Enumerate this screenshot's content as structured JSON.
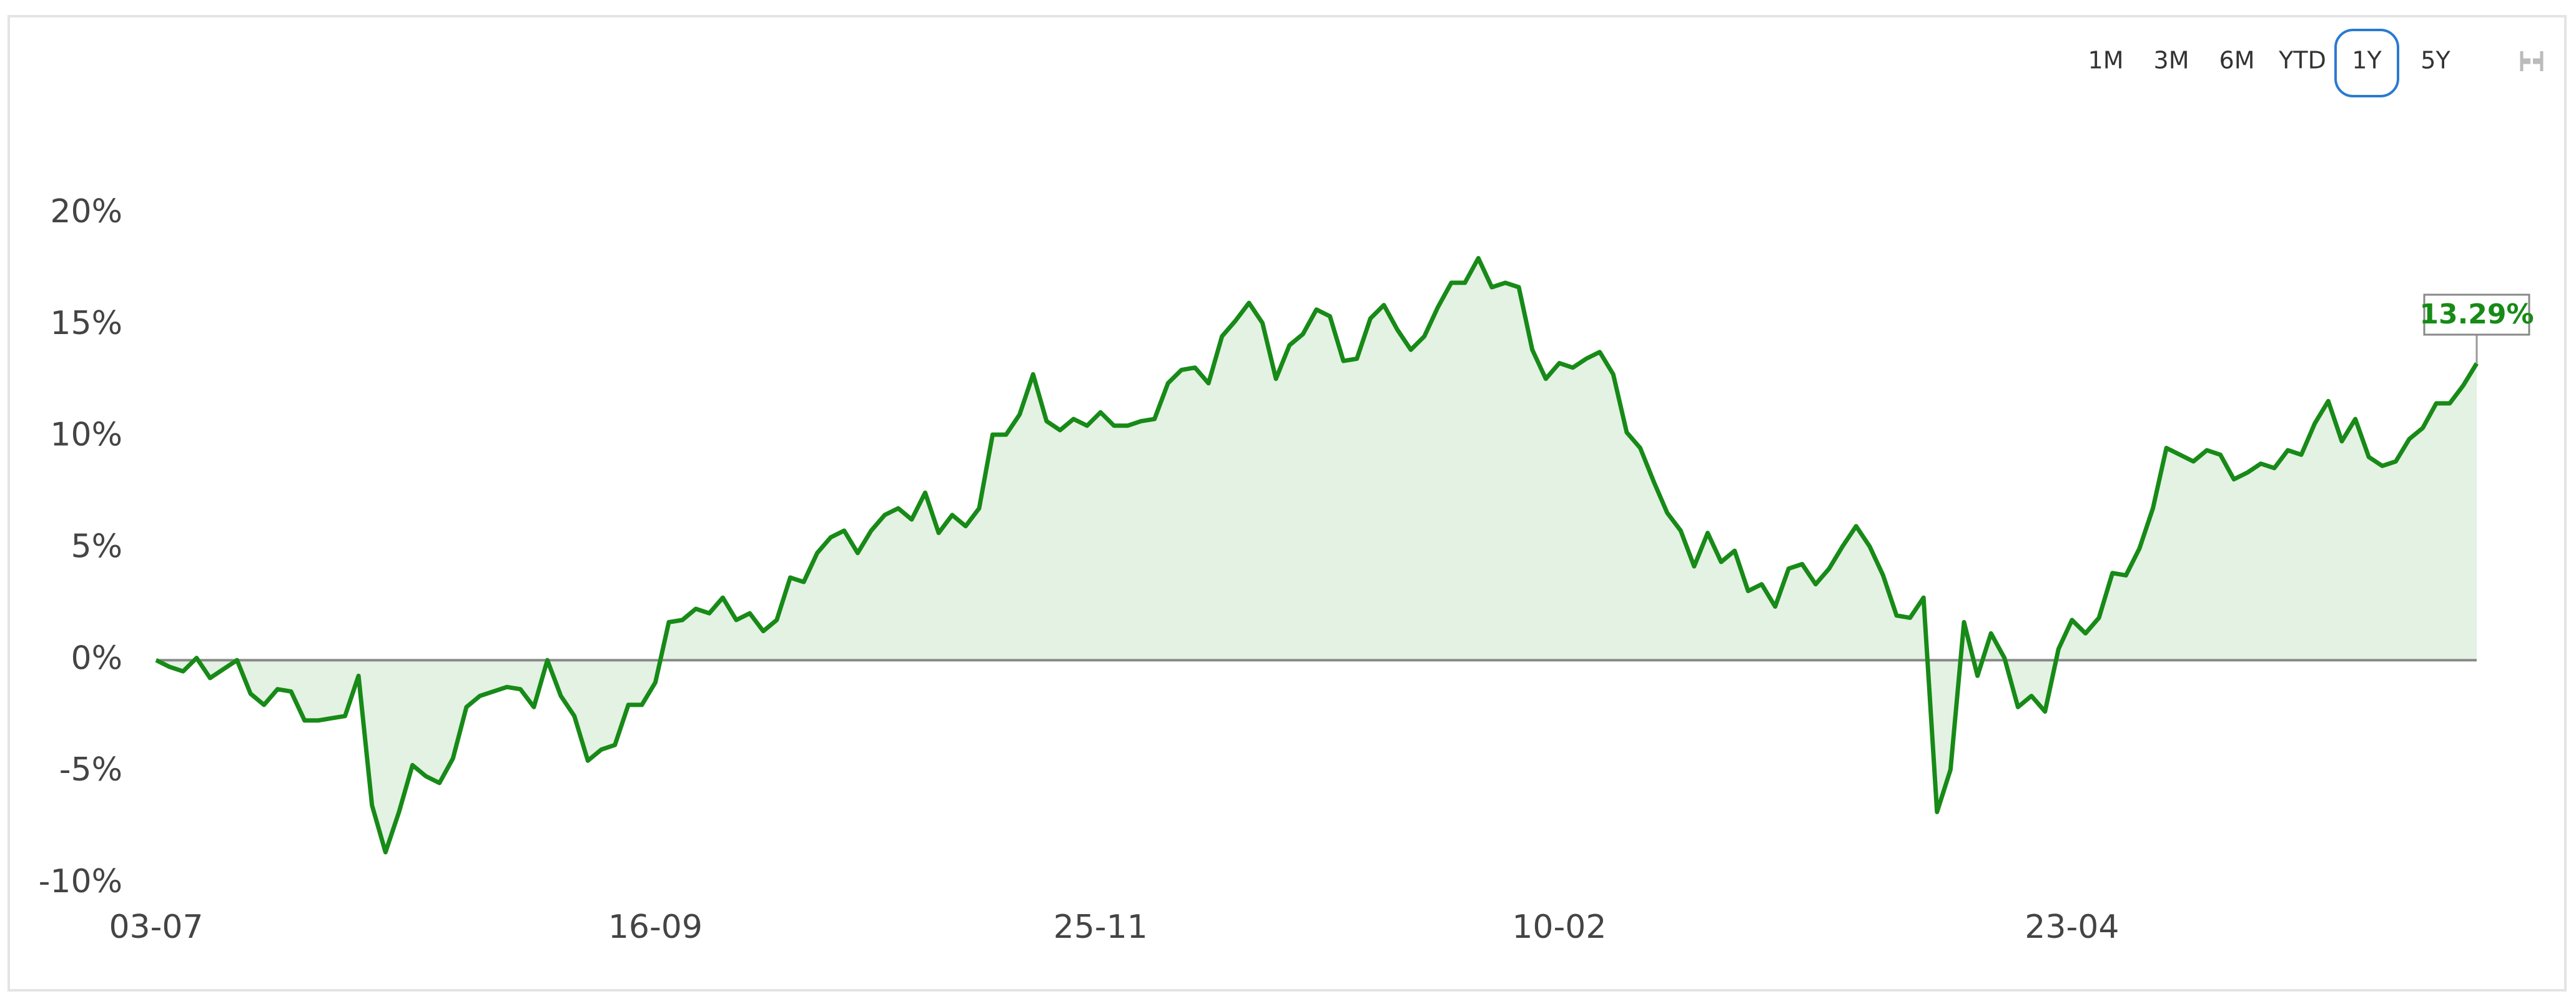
{
  "controls": {
    "ranges": [
      "1M",
      "3M",
      "6M",
      "YTD",
      "1Y",
      "5Y"
    ],
    "selected": 4
  },
  "chart_data": {
    "type": "area-line",
    "categories": [
      "03-07",
      null,
      null,
      null,
      null,
      null,
      null,
      null,
      null,
      null,
      null,
      null,
      null,
      null,
      null,
      null,
      null,
      null,
      null,
      null,
      null,
      null,
      null,
      null,
      null,
      null,
      null,
      null,
      null,
      null,
      null,
      null,
      null,
      null,
      null,
      null,
      null,
      "16-09",
      null,
      null,
      null,
      null,
      null,
      null,
      null,
      null,
      null,
      null,
      null,
      null,
      null,
      null,
      null,
      null,
      null,
      null,
      null,
      null,
      null,
      null,
      null,
      null,
      null,
      null,
      null,
      null,
      null,
      null,
      null,
      null,
      "25-11",
      null,
      null,
      null,
      null,
      null,
      null,
      null,
      null,
      null,
      null,
      null,
      null,
      null,
      null,
      null,
      null,
      null,
      null,
      null,
      null,
      null,
      null,
      null,
      null,
      null,
      null,
      null,
      null,
      null,
      null,
      null,
      null,
      null,
      "10-02",
      null,
      null,
      null,
      null,
      null,
      null,
      null,
      null,
      null,
      null,
      null,
      null,
      null,
      null,
      null,
      null,
      null,
      null,
      null,
      null,
      null,
      null,
      null,
      null,
      null,
      null,
      null,
      null,
      null,
      null,
      null,
      null,
      null,
      null,
      null,
      null,
      null,
      "23-04",
      null,
      null,
      null,
      null,
      null,
      null,
      null,
      null,
      null,
      null,
      null,
      null,
      null,
      null,
      null,
      null,
      null,
      null,
      null,
      null,
      null,
      null,
      null,
      null,
      null,
      null,
      null,
      null,
      null,
      null
    ],
    "series": [
      {
        "color": "#178a17",
        "fill": "#e3f2e3",
        "values": [
          0,
          -0.3,
          -0.5,
          0.1,
          -0.8,
          -0.4,
          0,
          -1.5,
          -2,
          -1.3,
          -1.4,
          -2.7,
          -2.7,
          -2.6,
          -2.5,
          -0.7,
          -6.5,
          -8.6,
          -6.8,
          -4.7,
          -5.2,
          -5.5,
          -4.4,
          -2.1,
          -1.6,
          -1.4,
          -1.2,
          -1.3,
          -2.1,
          0,
          -1.6,
          -2.5,
          -4.5,
          -4,
          -3.8,
          -2,
          -2,
          -1,
          1.7,
          1.8,
          2.3,
          2.1,
          2.8,
          1.8,
          2.1,
          1.3,
          1.8,
          3.7,
          3.5,
          4.8,
          5.5,
          5.8,
          4.8,
          5.8,
          6.5,
          6.8,
          6.3,
          7.5,
          5.7,
          6.5,
          6,
          6.8,
          10.1,
          10.1,
          11,
          12.8,
          10.7,
          10.3,
          10.8,
          10.5,
          11.1,
          10.5,
          10.5,
          10.7,
          10.8,
          12.4,
          13,
          13.1,
          12.4,
          14.5,
          15.2,
          16,
          15.1,
          12.6,
          14.1,
          14.6,
          15.7,
          15.4,
          13.4,
          13.5,
          15.3,
          15.9,
          14.8,
          13.9,
          14.5,
          15.8,
          16.9,
          16.9,
          18,
          16.7,
          16.9,
          16.7,
          13.9,
          12.6,
          13.3,
          13.1,
          13.5,
          13.8,
          12.8,
          10.2,
          9.5,
          8,
          6.6,
          5.8,
          4.2,
          5.7,
          4.4,
          4.9,
          3.1,
          3.4,
          2.4,
          4.1,
          4.3,
          3.4,
          4.1,
          5.1,
          6,
          5.1,
          3.8,
          2,
          1.9,
          2.8,
          -6.8,
          -4.9,
          1.7,
          -0.7,
          1.2,
          0.1,
          -2.1,
          -1.6,
          -2.3,
          0.5,
          1.8,
          1.2,
          1.9,
          3.9,
          3.8,
          5,
          6.8,
          9.5,
          9.2,
          8.9,
          9.4,
          9.2,
          8.1,
          8.4,
          8.8,
          8.6,
          9.4,
          9.2,
          10.6,
          11.6,
          9.8,
          10.8,
          9.1,
          8.7,
          8.9,
          9.9,
          10.4,
          11.5,
          11.5,
          12.3,
          13.29
        ],
        "value_labels": [
          null,
          null,
          null,
          null,
          null,
          null,
          null,
          null,
          null,
          null,
          null,
          null,
          null,
          null,
          null,
          null,
          null,
          null,
          null,
          null,
          null,
          null,
          null,
          null,
          null,
          null,
          null,
          null,
          null,
          null,
          null,
          null,
          null,
          null,
          null,
          null,
          null,
          null,
          null,
          null,
          null,
          null,
          null,
          null,
          null,
          null,
          null,
          null,
          null,
          null,
          null,
          null,
          null,
          null,
          null,
          null,
          null,
          null,
          null,
          null,
          null,
          null,
          null,
          null,
          null,
          null,
          null,
          null,
          null,
          null,
          null,
          null,
          null,
          null,
          null,
          null,
          null,
          null,
          null,
          null,
          null,
          null,
          null,
          null,
          null,
          null,
          null,
          null,
          null,
          null,
          null,
          null,
          null,
          null,
          null,
          null,
          null,
          null,
          null,
          null,
          null,
          null,
          null,
          null,
          null,
          null,
          null,
          null,
          null,
          null,
          null,
          null,
          null,
          null,
          null,
          null,
          null,
          null,
          null,
          null,
          null,
          null,
          null,
          null,
          null,
          null,
          null,
          null,
          null,
          null,
          null,
          null,
          null,
          null,
          null,
          null,
          null,
          null,
          null,
          null,
          null,
          null,
          null,
          null,
          null,
          null,
          null,
          null,
          null,
          null,
          null,
          null,
          null,
          null,
          null,
          null,
          null,
          null,
          null,
          null,
          null,
          null,
          null,
          null,
          null,
          null,
          null,
          null,
          null,
          null,
          null,
          null,
          "13.29%"
        ]
      }
    ],
    "ylim": [
      -10,
      20
    ],
    "yticks": [
      {
        "value": -10,
        "label": "-10%"
      },
      {
        "value": -5,
        "label": "-5%"
      },
      {
        "value": 0,
        "label": "0%"
      },
      {
        "value": 5,
        "label": "5%"
      },
      {
        "value": 10,
        "label": "10%"
      },
      {
        "value": 15,
        "label": "15%"
      },
      {
        "value": 20,
        "label": "20%"
      }
    ],
    "grid": false
  }
}
